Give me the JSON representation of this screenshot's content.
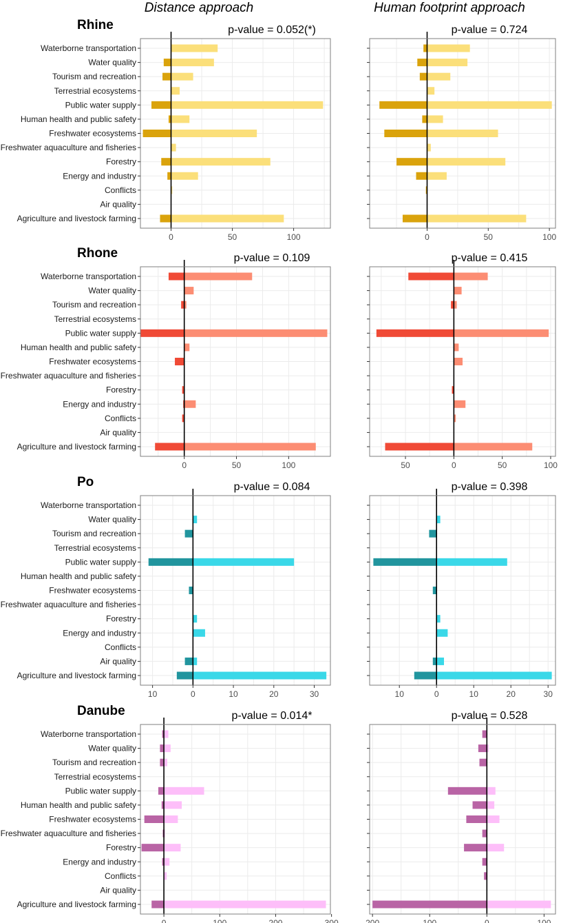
{
  "column_headers": [
    "Distance approach",
    "Human footprint approach"
  ],
  "categories": [
    "Waterborne transportation",
    "Water quality",
    "Tourism and recreation",
    "Terrestrial ecosystems",
    "Public water supply",
    "Human health and public safety",
    "Freshwater ecosystems",
    "Freshwater aquaculture and fisheries",
    "Forestry",
    "Energy and industry",
    "Conflicts",
    "Air quality",
    "Agriculture and livestock farming"
  ],
  "chart_data": [
    {
      "type": "bar",
      "orientation": "diverging-horizontal",
      "river": "Rhine",
      "approach": "Distance approach",
      "pvalue": "p-value = 0.052(*)",
      "colors": {
        "negative": "#DAA30C",
        "positive": "#FBDF7A"
      },
      "xlim": [
        -25,
        130
      ],
      "ticks": [
        {
          "v": 0,
          "label": "0"
        },
        {
          "v": 50,
          "label": "50"
        },
        {
          "v": 100,
          "label": "100"
        }
      ],
      "negative": [
        0,
        -6,
        -7,
        0,
        -16,
        -2,
        -23,
        0,
        -8,
        -3,
        0,
        0,
        -9
      ],
      "positive": [
        38,
        35,
        18,
        7,
        124,
        15,
        70,
        4,
        81,
        22,
        1,
        0,
        92
      ]
    },
    {
      "type": "bar",
      "orientation": "diverging-horizontal",
      "river": "Rhine",
      "approach": "Human footprint approach",
      "pvalue": "p-value = 0.724",
      "colors": {
        "negative": "#DAA30C",
        "positive": "#FBDF7A"
      },
      "xlim": [
        -47,
        105
      ],
      "ticks": [
        {
          "v": 0,
          "label": "0"
        },
        {
          "v": 50,
          "label": "50"
        },
        {
          "v": 100,
          "label": "100"
        }
      ],
      "negative": [
        -3,
        -8,
        -6,
        0,
        -39,
        -4,
        -35,
        0,
        -25,
        -9,
        -1,
        0,
        -20
      ],
      "positive": [
        35,
        33,
        19,
        6,
        102,
        13,
        58,
        3,
        64,
        16,
        0,
        0,
        81
      ]
    },
    {
      "type": "bar",
      "orientation": "diverging-horizontal",
      "river": "Rhone",
      "approach": "Distance approach",
      "pvalue": "p-value = 0.109",
      "colors": {
        "negative": "#F04A36",
        "positive": "#FC8D73"
      },
      "xlim": [
        -42,
        140
      ],
      "ticks": [
        {
          "v": 0,
          "label": "0"
        },
        {
          "v": 50,
          "label": "50"
        },
        {
          "v": 100,
          "label": "100"
        }
      ],
      "negative": [
        -15,
        0,
        -3,
        0,
        -42,
        0,
        -9,
        0,
        -2,
        -1,
        -2,
        0,
        -28
      ],
      "positive": [
        65,
        9,
        2,
        0,
        137,
        5,
        0,
        0,
        0,
        11,
        0,
        0,
        126
      ]
    },
    {
      "type": "bar",
      "orientation": "diverging-horizontal",
      "river": "Rhone",
      "approach": "Human footprint approach",
      "pvalue": "p-value = 0.415",
      "colors": {
        "negative": "#F04A36",
        "positive": "#FC8D73"
      },
      "xlim": [
        -87,
        105
      ],
      "tick_note": "negative-side tick labels are printed as absolute values",
      "ticks": [
        {
          "v": -50,
          "label": "50"
        },
        {
          "v": 0,
          "label": "0"
        },
        {
          "v": 50,
          "label": "50"
        },
        {
          "v": 100,
          "label": "100"
        }
      ],
      "negative": [
        -47,
        0,
        -3,
        0,
        -80,
        0,
        0,
        0,
        -2,
        0,
        0,
        0,
        -71
      ],
      "positive": [
        35,
        8,
        3,
        0,
        98,
        5,
        9,
        0,
        0,
        12,
        2,
        0,
        81
      ]
    },
    {
      "type": "bar",
      "orientation": "diverging-horizontal",
      "river": "Po",
      "approach": "Distance approach",
      "pvalue": "p-value = 0.084",
      "colors": {
        "negative": "#21959E",
        "positive": "#3AD8E8"
      },
      "xlim": [
        -13,
        34
      ],
      "tick_note": "negative-side tick labels are printed as absolute values",
      "ticks": [
        {
          "v": -10,
          "label": "10"
        },
        {
          "v": 0,
          "label": "0"
        },
        {
          "v": 10,
          "label": "10"
        },
        {
          "v": 20,
          "label": "20"
        },
        {
          "v": 30,
          "label": "30"
        }
      ],
      "negative": [
        0,
        0,
        -2,
        0,
        -11,
        0,
        -1,
        0,
        0,
        0,
        0,
        -2,
        -4
      ],
      "positive": [
        0,
        1,
        0,
        0,
        25,
        0,
        0,
        0,
        1,
        3,
        0,
        1,
        33
      ]
    },
    {
      "type": "bar",
      "orientation": "diverging-horizontal",
      "river": "Po",
      "approach": "Human footprint approach",
      "pvalue": "p-value = 0.398",
      "colors": {
        "negative": "#21959E",
        "positive": "#3AD8E8"
      },
      "xlim": [
        -18,
        32
      ],
      "tick_note": "negative-side tick labels are printed as absolute values",
      "ticks": [
        {
          "v": -10,
          "label": "10"
        },
        {
          "v": 0,
          "label": "0"
        },
        {
          "v": 10,
          "label": "10"
        },
        {
          "v": 20,
          "label": "20"
        },
        {
          "v": 30,
          "label": "30"
        }
      ],
      "negative": [
        0,
        0,
        -2,
        0,
        -17,
        0,
        -1,
        0,
        0,
        0,
        0,
        -1,
        -6
      ],
      "positive": [
        0,
        1,
        0,
        0,
        19,
        0,
        0,
        0,
        1,
        3,
        0,
        2,
        31
      ]
    },
    {
      "type": "bar",
      "orientation": "diverging-horizontal",
      "river": "Danube",
      "approach": "Distance approach",
      "pvalue": "p-value = 0.014*",
      "colors": {
        "negative": "#B964A5",
        "positive": "#FDBEF9"
      },
      "xlim": [
        -42,
        298
      ],
      "ticks": [
        {
          "v": 0,
          "label": "0"
        },
        {
          "v": 100,
          "label": "100"
        },
        {
          "v": 200,
          "label": "200"
        },
        {
          "v": 300,
          "label": "300"
        }
      ],
      "negative": [
        -3,
        -7,
        -7,
        0,
        -10,
        -4,
        -35,
        -2,
        -40,
        -3,
        0,
        0,
        -22
      ],
      "positive": [
        8,
        12,
        6,
        0,
        72,
        32,
        25,
        2,
        30,
        10,
        5,
        0,
        290
      ]
    },
    {
      "type": "bar",
      "orientation": "diverging-horizontal",
      "river": "Danube",
      "approach": "Human footprint approach",
      "pvalue": "p-value = 0.528",
      "colors": {
        "negative": "#B964A5",
        "positive": "#FDBEF9"
      },
      "xlim": [
        -205,
        120
      ],
      "tick_note": "negative-side tick labels are printed as absolute values",
      "ticks": [
        {
          "v": -200,
          "label": "200"
        },
        {
          "v": -100,
          "label": "100"
        },
        {
          "v": 0,
          "label": "0"
        },
        {
          "v": 100,
          "label": "100"
        }
      ],
      "negative": [
        -8,
        -15,
        -13,
        0,
        -68,
        -25,
        -36,
        -8,
        -40,
        -8,
        -5,
        0,
        -200
      ],
      "positive": [
        0,
        3,
        0,
        0,
        15,
        13,
        22,
        0,
        30,
        0,
        0,
        0,
        112
      ]
    }
  ]
}
